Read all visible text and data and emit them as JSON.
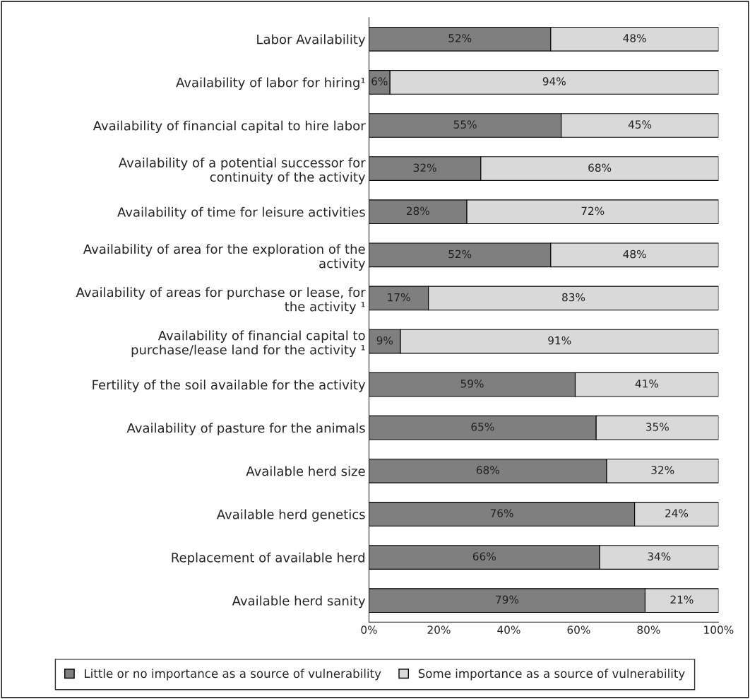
{
  "chart_data": {
    "type": "bar",
    "orientation": "horizontal",
    "stacked": true,
    "categories": [
      "Labor Availability",
      "Availability of labor for hiring¹",
      "Availability of financial capital to hire labor",
      "Availability of a potential successor for\ncontinuity of the activity",
      "Availability of time for leisure activities",
      "Availability of area for the exploration of the\nactivity",
      "Availability of areas for purchase or lease, for\nthe activity ¹",
      "Availability of financial capital to\npurchase/lease land for the activity ¹",
      "Fertility of the soil available for the activity",
      "Availability of pasture for the animals",
      "Available herd size",
      "Available herd genetics",
      "Replacement of available herd",
      "Available herd sanity"
    ],
    "series": [
      {
        "name": "Little or no importance as a source of vulnerability",
        "color": "#7f7f7f",
        "values": [
          52,
          6,
          55,
          32,
          28,
          52,
          17,
          9,
          59,
          65,
          68,
          76,
          66,
          79
        ],
        "value_labels": [
          "52%",
          "6%",
          "55%",
          "32%",
          "28%",
          "52%",
          "17%",
          "9%",
          "59%",
          "65%",
          "68%",
          "76%",
          "66%",
          "79%"
        ]
      },
      {
        "name": "Some importance as a source of vulnerability",
        "color": "#d9d9d9",
        "values": [
          48,
          94,
          45,
          68,
          72,
          48,
          83,
          91,
          41,
          35,
          32,
          24,
          34,
          21
        ],
        "value_labels": [
          "48%",
          "94%",
          "45%",
          "68%",
          "72%",
          "48%",
          "83%",
          "91%",
          "41%",
          "35%",
          "32%",
          "24%",
          "34%",
          "21%"
        ]
      }
    ],
    "xlim": [
      0,
      100
    ],
    "xticks": [
      {
        "value": 0,
        "label": "0%"
      },
      {
        "value": 20,
        "label": "20%"
      },
      {
        "value": 40,
        "label": "40%"
      },
      {
        "value": 60,
        "label": "60%"
      },
      {
        "value": 80,
        "label": "80%"
      },
      {
        "value": 100,
        "label": "100%"
      }
    ],
    "legend": "bottom",
    "grid": false
  }
}
